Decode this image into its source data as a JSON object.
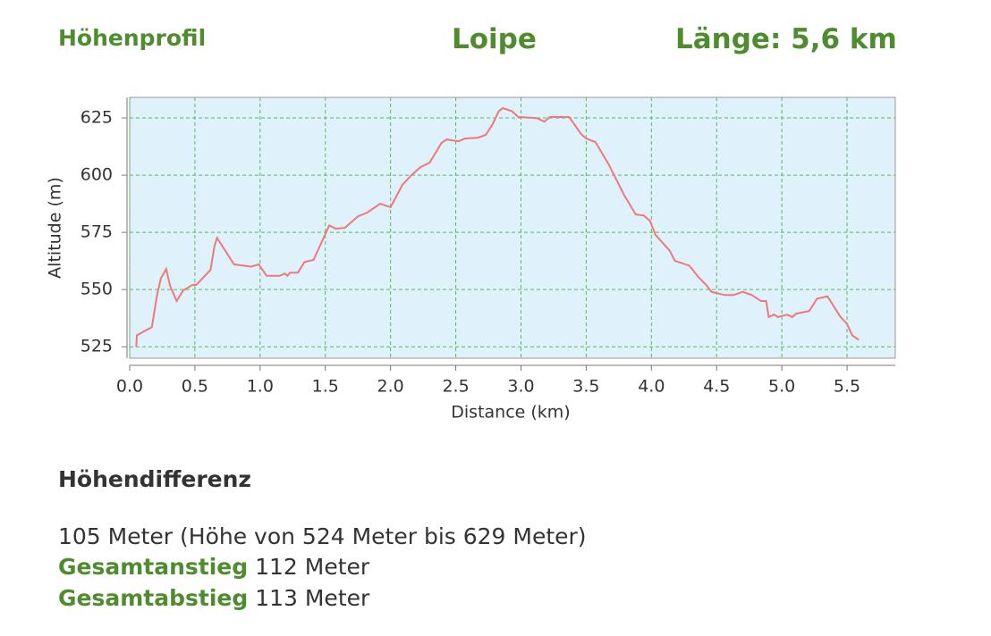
{
  "header": {
    "left": "Höhenprofil",
    "center": "Loipe",
    "right": "Länge: 5,6 km"
  },
  "chart_data": {
    "type": "line",
    "xlabel": "Distance (km)",
    "ylabel": "Altitude (m)",
    "color": "#f07878",
    "grid": true,
    "x": [
      0.05,
      0.055,
      0.17,
      0.21,
      0.24,
      0.28,
      0.31,
      0.36,
      0.41,
      0.48,
      0.51,
      0.62,
      0.65,
      0.67,
      0.8,
      0.93,
      0.99,
      1.05,
      1.15,
      1.19,
      1.21,
      1.23,
      1.29,
      1.34,
      1.41,
      1.49,
      1.53,
      1.58,
      1.65,
      1.75,
      1.82,
      1.92,
      2.0,
      2.09,
      2.16,
      2.23,
      2.3,
      2.39,
      2.43,
      2.52,
      2.57,
      2.67,
      2.73,
      2.78,
      2.83,
      2.86,
      2.93,
      2.98,
      3.12,
      3.18,
      3.22,
      3.37,
      3.46,
      3.5,
      3.57,
      3.67,
      3.79,
      3.88,
      3.94,
      3.99,
      4.03,
      4.14,
      4.18,
      4.29,
      4.36,
      4.42,
      4.46,
      4.56,
      4.63,
      4.7,
      4.77,
      4.84,
      4.88,
      4.9,
      4.94,
      4.97,
      5.04,
      5.08,
      5.11,
      5.21,
      5.27,
      5.35,
      5.45,
      5.5,
      5.54,
      5.59
    ],
    "values": [
      525,
      530,
      533.6,
      547.6,
      555,
      559,
      551.6,
      545,
      549.6,
      552,
      552,
      558.6,
      569,
      572.6,
      561,
      560,
      561,
      556,
      556,
      557,
      556,
      557.4,
      557.4,
      562,
      563,
      573,
      578,
      576.6,
      577,
      582,
      583.6,
      587.5,
      586,
      595.7,
      600,
      603.5,
      605.5,
      614,
      615.6,
      614.8,
      616,
      616.4,
      617.6,
      622,
      628,
      629.3,
      628,
      625.4,
      625,
      623.4,
      625.4,
      625.4,
      618,
      616,
      614.5,
      605,
      591.4,
      582.8,
      582.4,
      580,
      574,
      567,
      562.5,
      560.5,
      555.5,
      552,
      549,
      547.6,
      547.6,
      549,
      547.6,
      545,
      545,
      538,
      539,
      538,
      539,
      538,
      539.5,
      540.6,
      546,
      547,
      538,
      535,
      530,
      528
    ],
    "xlim": [
      0,
      5.87
    ],
    "ylim": [
      520,
      634
    ],
    "xticks": [
      {
        "value": 0,
        "label": "0.0"
      },
      0.5,
      {
        "value": 1,
        "label": "1.0"
      },
      1.5,
      {
        "value": 2,
        "label": "2.0"
      },
      2.5,
      {
        "value": 3,
        "label": "3.0"
      },
      3.5,
      {
        "value": 4,
        "label": "4.0"
      },
      4.5,
      {
        "value": 5,
        "label": "5.0"
      },
      5.5
    ],
    "yticks": [
      525,
      550,
      575,
      600,
      625
    ]
  },
  "summary": {
    "title": "Höhendifferenz",
    "range": "105 Meter (Höhe von 524 Meter bis 629 Meter)",
    "ascent_label": "Gesamtanstieg",
    "ascent": "112 Meter",
    "descent_label": "Gesamtabstieg",
    "descent": "113 Meter"
  }
}
